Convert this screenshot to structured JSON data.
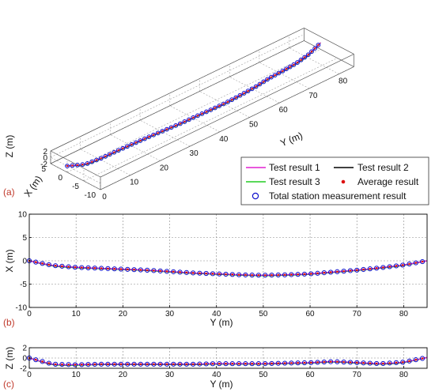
{
  "figure": {
    "panel_labels": [
      "(a)",
      "(b)",
      "(c)"
    ],
    "legend": [
      {
        "label": "Test result 1",
        "color": "#e020d0",
        "style": "line"
      },
      {
        "label": "Test result 2",
        "color": "#000000",
        "style": "line"
      },
      {
        "label": "Test result 3",
        "color": "#22cc22",
        "style": "line"
      },
      {
        "label": "Average result",
        "color": "#dd1111",
        "style": "dot"
      },
      {
        "label": "Total station measurement result",
        "color": "#1010cc",
        "style": "circle"
      }
    ]
  },
  "chart_data": [
    {
      "type": "line3d",
      "panel": "(a)",
      "xlabel": "Y (m)",
      "ylabel": "X (m)",
      "zlabel": "Z (m)",
      "y_ticks": [
        "0",
        "10",
        "20",
        "30",
        "40",
        "50",
        "60",
        "70",
        "80"
      ],
      "x_ticks": [
        "5",
        "0",
        "-5",
        "-10"
      ],
      "z_ticks": [
        "2",
        "0",
        "-2"
      ],
      "ylim": [
        0,
        85
      ],
      "xlim": [
        -10,
        5
      ],
      "zlim": [
        -2,
        2
      ],
      "grid": true
    },
    {
      "type": "line",
      "panel": "(b)",
      "xlabel": "Y (m)",
      "ylabel": "X (m)",
      "xlim": [
        0,
        85
      ],
      "ylim": [
        -10,
        10
      ],
      "x_ticks": [
        "0",
        "10",
        "20",
        "30",
        "40",
        "50",
        "60",
        "70",
        "80"
      ],
      "y_ticks": [
        "10",
        "5",
        "0",
        "-5",
        "-10"
      ],
      "grid": true,
      "x": [
        0,
        5,
        10,
        15,
        20,
        25,
        30,
        35,
        40,
        45,
        50,
        55,
        60,
        65,
        70,
        75,
        80,
        85
      ],
      "series": [
        {
          "name": "Test result 1",
          "values": [
            0,
            -1.0,
            -1.4,
            -1.6,
            -1.8,
            -2.0,
            -2.3,
            -2.6,
            -2.8,
            -3.0,
            -3.1,
            -3.0,
            -2.8,
            -2.4,
            -2.0,
            -1.5,
            -0.9,
            0
          ]
        },
        {
          "name": "Test result 2",
          "values": [
            0,
            -1.0,
            -1.4,
            -1.6,
            -1.8,
            -2.0,
            -2.3,
            -2.6,
            -2.8,
            -3.0,
            -3.1,
            -3.0,
            -2.8,
            -2.4,
            -2.0,
            -1.5,
            -0.9,
            0
          ]
        },
        {
          "name": "Test result 3",
          "values": [
            0,
            -1.1,
            -1.5,
            -1.7,
            -1.9,
            -2.1,
            -2.4,
            -2.7,
            -2.9,
            -3.1,
            -3.2,
            -3.1,
            -2.9,
            -2.5,
            -2.1,
            -1.6,
            -1.0,
            0
          ]
        },
        {
          "name": "Average result",
          "values": [
            0,
            -1.0,
            -1.4,
            -1.6,
            -1.8,
            -2.0,
            -2.3,
            -2.6,
            -2.8,
            -3.0,
            -3.1,
            -3.0,
            -2.8,
            -2.4,
            -2.0,
            -1.5,
            -0.9,
            0
          ]
        },
        {
          "name": "Total station measurement result",
          "values": [
            0,
            -1.0,
            -1.4,
            -1.6,
            -1.8,
            -2.0,
            -2.3,
            -2.6,
            -2.8,
            -3.0,
            -3.1,
            -3.0,
            -2.8,
            -2.4,
            -2.0,
            -1.5,
            -0.9,
            0
          ]
        }
      ]
    },
    {
      "type": "line",
      "panel": "(c)",
      "xlabel": "Y (m)",
      "ylabel": "Z (m)",
      "xlim": [
        0,
        85
      ],
      "ylim": [
        -2,
        2
      ],
      "x_ticks": [
        "0",
        "10",
        "20",
        "30",
        "40",
        "50",
        "60",
        "70",
        "80"
      ],
      "y_ticks": [
        "2",
        "0",
        "-2"
      ],
      "grid": true,
      "x": [
        0,
        5,
        10,
        15,
        20,
        25,
        30,
        35,
        40,
        45,
        50,
        55,
        60,
        65,
        70,
        75,
        80,
        85
      ],
      "series": [
        {
          "name": "Test result 1",
          "values": [
            0,
            -1.2,
            -1.3,
            -1.2,
            -1.2,
            -1.2,
            -1.2,
            -1.2,
            -1.1,
            -1.1,
            -1.1,
            -1.0,
            -0.9,
            -0.7,
            -0.9,
            -1.1,
            -0.8,
            0.1
          ]
        },
        {
          "name": "Test result 2",
          "values": [
            0,
            -1.2,
            -1.3,
            -1.2,
            -1.2,
            -1.2,
            -1.2,
            -1.2,
            -1.1,
            -1.1,
            -1.1,
            -1.0,
            -0.9,
            -0.7,
            -0.9,
            -1.1,
            -0.8,
            0.1
          ]
        },
        {
          "name": "Test result 3",
          "values": [
            0,
            -1.3,
            -1.4,
            -1.3,
            -1.3,
            -1.3,
            -1.3,
            -1.3,
            -1.2,
            -1.2,
            -1.2,
            -1.1,
            -1.0,
            -0.8,
            -1.0,
            -1.2,
            -0.9,
            0.1
          ]
        },
        {
          "name": "Average result",
          "values": [
            0,
            -1.2,
            -1.3,
            -1.2,
            -1.2,
            -1.2,
            -1.2,
            -1.2,
            -1.1,
            -1.1,
            -1.1,
            -1.0,
            -0.9,
            -0.7,
            -0.9,
            -1.1,
            -0.8,
            0.1
          ]
        },
        {
          "name": "Total station measurement result",
          "values": [
            0,
            -1.2,
            -1.3,
            -1.2,
            -1.2,
            -1.2,
            -1.2,
            -1.2,
            -1.1,
            -1.1,
            -1.1,
            -1.0,
            -0.9,
            -0.7,
            -0.9,
            -1.1,
            -0.8,
            0.1
          ]
        }
      ]
    }
  ]
}
